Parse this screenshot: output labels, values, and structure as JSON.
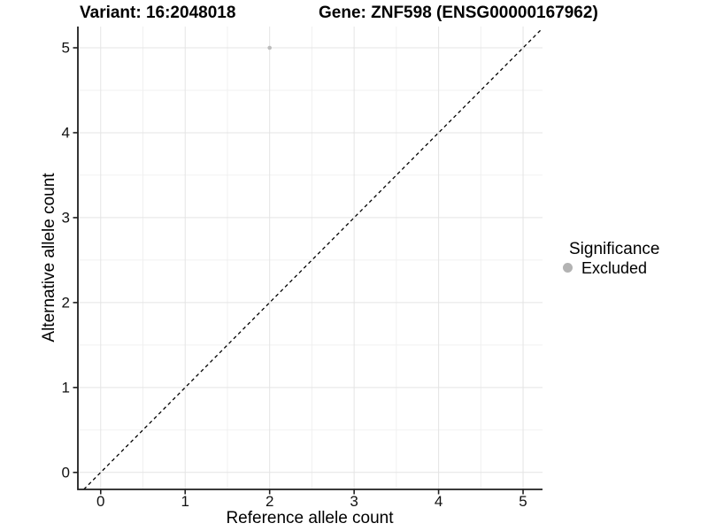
{
  "chart_data": {
    "type": "scatter",
    "titles": {
      "left": "Variant: 16:2048018",
      "right": "Gene: ZNF598 (ENSG00000167962)"
    },
    "xlabel": "Reference allele count",
    "ylabel": "Alternative allele count",
    "xticks": [
      0,
      1,
      2,
      3,
      4,
      5
    ],
    "yticks": [
      0,
      1,
      2,
      3,
      4,
      5
    ],
    "xlim": [
      -0.27,
      5.23
    ],
    "ylim": [
      -0.2,
      5.25
    ],
    "grid": {
      "major": true,
      "minor": true
    },
    "points": [
      {
        "x": 2,
        "y": 5,
        "significance": "Excluded"
      }
    ],
    "reference_line": {
      "type": "identity",
      "slope": 1,
      "intercept": 0,
      "linetype": "dashed"
    },
    "legend": {
      "title": "Significance",
      "position": "right",
      "items": [
        {
          "label": "Excluded",
          "color": "#b3b3b3",
          "marker": "circle"
        }
      ]
    },
    "colors": {
      "point": "#bcbcbc",
      "grid_major": "#e4e4e4",
      "grid_minor": "#f0f0f0",
      "axis_line": "#1f1f1f",
      "dashed_line": "#000000",
      "background": "#ffffff"
    }
  }
}
